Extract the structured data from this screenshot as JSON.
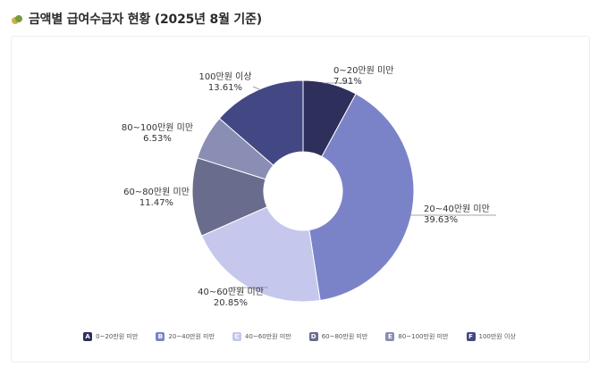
{
  "header": {
    "icon": "leaf-icon",
    "title": "금액별 급여수급자 현황 (2025년 8월 기준)"
  },
  "chart_data": {
    "type": "pie",
    "donut": true,
    "title": "금액별 급여수급자 현황 (2025년 8월 기준)",
    "legend_position": "bottom",
    "slices": [
      {
        "key": "A",
        "label": "0~20만원 미만",
        "value": 7.91,
        "value_text": "7.91%",
        "color": "#2e2f5b"
      },
      {
        "key": "B",
        "label": "20~40만원 미만",
        "value": 39.63,
        "value_text": "39.63%",
        "color": "#7b83c8"
      },
      {
        "key": "C",
        "label": "40~60만원 미만",
        "value": 20.85,
        "value_text": "20.85%",
        "color": "#c5c8ec"
      },
      {
        "key": "D",
        "label": "60~80만원 미만",
        "value": 11.47,
        "value_text": "11.47%",
        "color": "#696c8c"
      },
      {
        "key": "E",
        "label": "80~100만원 미만",
        "value": 6.53,
        "value_text": "6.53%",
        "color": "#8a8db4"
      },
      {
        "key": "F",
        "label": "100만원 이상",
        "value": 13.61,
        "value_text": "13.61%",
        "color": "#434885"
      }
    ]
  }
}
